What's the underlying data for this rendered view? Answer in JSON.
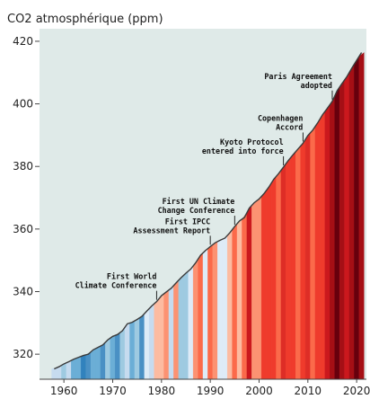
{
  "chart_data": {
    "type": "line",
    "title": "CO2 atmosphérique (ppm)",
    "xlabel": "",
    "ylabel": "",
    "xlim": [
      1955,
      2022
    ],
    "ylim": [
      312,
      424
    ],
    "x_ticks": [
      1960,
      1970,
      1980,
      1990,
      2000,
      2010,
      2020
    ],
    "y_ticks": [
      320,
      340,
      360,
      380,
      400,
      420
    ],
    "grid": false,
    "legend": "none",
    "background_color": "#dfeae8",
    "series": [
      {
        "color": "#3a3a3a",
        "x": [
          1958,
          1959,
          1960,
          1961,
          1962,
          1963,
          1964,
          1965,
          1966,
          1967,
          1968,
          1969,
          1970,
          1971,
          1972,
          1973,
          1974,
          1975,
          1976,
          1977,
          1978,
          1979,
          1980,
          1981,
          1982,
          1983,
          1984,
          1985,
          1986,
          1987,
          1988,
          1989,
          1990,
          1991,
          1992,
          1993,
          1994,
          1995,
          1996,
          1997,
          1998,
          1999,
          2000,
          2001,
          2002,
          2003,
          2004,
          2005,
          2006,
          2007,
          2008,
          2009,
          2010,
          2011,
          2012,
          2013,
          2014,
          2015,
          2016,
          2017,
          2018,
          2019,
          2020,
          2021
        ],
        "values": [
          315.3,
          316.0,
          316.9,
          317.6,
          318.4,
          319.0,
          319.6,
          320.0,
          321.4,
          322.2,
          323.0,
          324.6,
          325.7,
          326.3,
          327.5,
          329.7,
          330.2,
          331.1,
          332.1,
          333.8,
          335.4,
          336.8,
          338.7,
          339.9,
          341.1,
          342.8,
          344.4,
          345.9,
          347.2,
          349.2,
          351.6,
          353.1,
          354.4,
          355.6,
          356.4,
          357.1,
          358.8,
          360.8,
          362.6,
          363.7,
          366.7,
          368.4,
          369.6,
          371.3,
          373.4,
          375.9,
          377.7,
          379.8,
          381.9,
          383.8,
          385.6,
          387.4,
          389.9,
          391.6,
          393.9,
          396.5,
          398.6,
          400.8,
          404.2,
          406.5,
          408.7,
          411.4,
          413.9,
          416.4
        ]
      }
    ],
    "warming_stripes": {
      "years": [
        1958,
        1959,
        1960,
        1961,
        1962,
        1963,
        1964,
        1965,
        1966,
        1967,
        1968,
        1969,
        1970,
        1971,
        1972,
        1973,
        1974,
        1975,
        1976,
        1977,
        1978,
        1979,
        1980,
        1981,
        1982,
        1983,
        1984,
        1985,
        1986,
        1987,
        1988,
        1989,
        1990,
        1991,
        1992,
        1993,
        1994,
        1995,
        1996,
        1997,
        1998,
        1999,
        2000,
        2001,
        2002,
        2003,
        2004,
        2005,
        2006,
        2007,
        2008,
        2009,
        2010,
        2011,
        2012,
        2013,
        2014,
        2015,
        2016,
        2017,
        2018,
        2019,
        2020,
        2021
      ],
      "colors": [
        "#c6dbef",
        "#c6dbef",
        "#9ecae1",
        "#c6dbef",
        "#6baed6",
        "#6baed6",
        "#3182bd",
        "#4a90c4",
        "#6baed6",
        "#6baed6",
        "#4a90c4",
        "#9ecae1",
        "#6baed6",
        "#4a90c4",
        "#9ecae1",
        "#c6dbef",
        "#6baed6",
        "#9ecae1",
        "#4a90c4",
        "#deebf7",
        "#c6dbef",
        "#fcbba1",
        "#fcbba1",
        "#fc9272",
        "#c6dbef",
        "#fc9272",
        "#9ecae1",
        "#9ecae1",
        "#deebf7",
        "#fc9272",
        "#fb6a4a",
        "#deebf7",
        "#fb6a4a",
        "#fc9272",
        "#deebf7",
        "#deebf7",
        "#fcbba1",
        "#fb6a4a",
        "#fcbba1",
        "#fb6a4a",
        "#cb181d",
        "#fc9272",
        "#fc9272",
        "#ef3b2c",
        "#ef3b2c",
        "#ef3b2c",
        "#fb6a4a",
        "#de2d26",
        "#ef3b2c",
        "#ef3b2c",
        "#fb6a4a",
        "#ef3b2c",
        "#de2d26",
        "#fb6a4a",
        "#ef3b2c",
        "#ef3b2c",
        "#cb181d",
        "#a50f15",
        "#67000d",
        "#a50f15",
        "#cb181d",
        "#a50f15",
        "#67000d",
        "#a50f15"
      ]
    },
    "annotations": [
      {
        "lines": [
          "First World",
          "Climate Conference"
        ],
        "year": 1979,
        "value": 336.8
      },
      {
        "lines": [
          "First IPCC",
          "Assessment Report"
        ],
        "year": 1990,
        "value": 354.4
      },
      {
        "lines": [
          "First UN Climate",
          "Change Conference"
        ],
        "year": 1995,
        "value": 360.8
      },
      {
        "lines": [
          "Kyoto Protocol",
          "entered into force"
        ],
        "year": 2005,
        "value": 379.8
      },
      {
        "lines": [
          "Copenhagen",
          "Accord"
        ],
        "year": 2009,
        "value": 387.4
      },
      {
        "lines": [
          "Paris Agreement",
          "adopted"
        ],
        "year": 2015,
        "value": 400.8
      }
    ]
  }
}
